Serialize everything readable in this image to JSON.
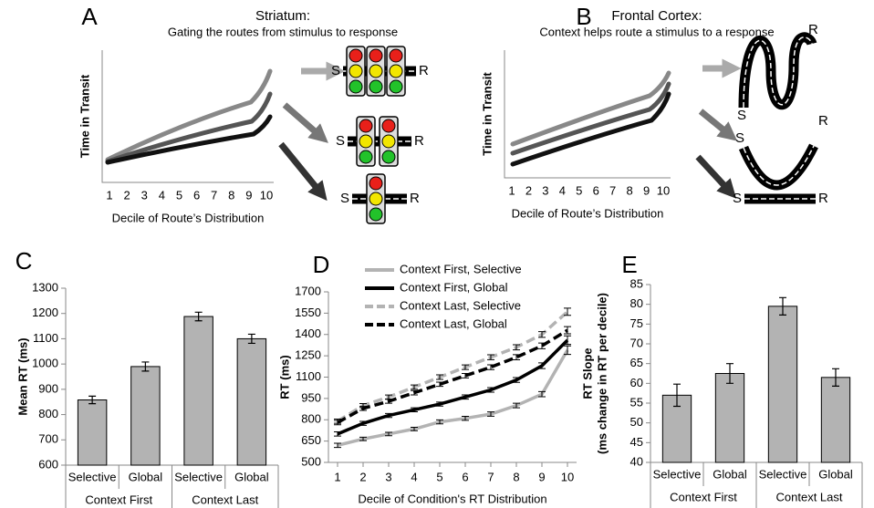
{
  "diagrams": [
    {
      "label": "A",
      "title": "Striatum:",
      "subtitle": "Gating the routes from stimulus to response",
      "ylabel": "Time in Transit",
      "xlabel": "Decile of Route’s Distribution",
      "xticks": [
        1,
        2,
        3,
        4,
        5,
        6,
        7,
        8,
        9,
        10
      ],
      "start": "S",
      "end": "R"
    },
    {
      "label": "B",
      "title": "Frontal Cortex:",
      "subtitle": "Context helps route a stimulus to a response",
      "ylabel": "Time in Transit",
      "xlabel": "Decile of Route’s Distribution",
      "xticks": [
        1,
        2,
        3,
        4,
        5,
        6,
        7,
        8,
        9,
        10
      ],
      "start": "S",
      "end": "R"
    }
  ],
  "chart_data": [
    {
      "type": "bar",
      "label": "C",
      "ylabel": [
        "Mean RT (ms)"
      ],
      "categories": [
        "Selective",
        "Global",
        "Selective",
        "Global"
      ],
      "groups": [
        "Context First",
        "Context Last"
      ],
      "values": [
        858,
        990,
        1188,
        1100
      ],
      "errors": [
        15,
        18,
        17,
        18
      ],
      "color": "#b3b3b3",
      "ylim": [
        600,
        1300
      ],
      "yticks": [
        600,
        700,
        800,
        900,
        1000,
        1100,
        1200,
        1300
      ]
    },
    {
      "type": "line",
      "label": "D",
      "ylabel": "RT (ms)",
      "xlabel": "Decile of Condition's RT Distribution",
      "x": [
        1,
        2,
        3,
        4,
        5,
        6,
        7,
        8,
        9,
        10
      ],
      "xticks": [
        1,
        2,
        3,
        4,
        5,
        6,
        7,
        8,
        9,
        10
      ],
      "ylim": [
        500,
        1700
      ],
      "yticks": [
        500,
        650,
        800,
        950,
        1100,
        1250,
        1400,
        1550,
        1700
      ],
      "legend": "upper left",
      "series": [
        {
          "name": "Context First, Selective",
          "color": "#b3b3b3",
          "dashed": false,
          "values": [
            620,
            665,
            700,
            735,
            785,
            810,
            840,
            900,
            980,
            1290
          ],
          "errors": [
            15,
            12,
            12,
            12,
            14,
            14,
            15,
            16,
            18,
            30
          ]
        },
        {
          "name": "Context First, Global",
          "color": "#000000",
          "dashed": false,
          "values": [
            700,
            775,
            830,
            870,
            910,
            960,
            1010,
            1080,
            1180,
            1360
          ],
          "errors": [
            15,
            14,
            14,
            14,
            14,
            15,
            16,
            17,
            20,
            30
          ]
        },
        {
          "name": "Context Last, Selective",
          "color": "#b3b3b3",
          "dashed": true,
          "values": [
            790,
            900,
            960,
            1030,
            1100,
            1170,
            1240,
            1310,
            1400,
            1560
          ],
          "errors": [
            15,
            14,
            14,
            15,
            16,
            16,
            17,
            18,
            20,
            25
          ]
        },
        {
          "name": "Context Last, Global",
          "color": "#000000",
          "dashed": true,
          "values": [
            780,
            880,
            930,
            990,
            1050,
            1110,
            1170,
            1240,
            1320,
            1430
          ],
          "errors": [
            15,
            14,
            14,
            15,
            15,
            16,
            17,
            18,
            20,
            25
          ]
        }
      ]
    },
    {
      "type": "bar",
      "label": "E",
      "ylabel": [
        "RT Slope",
        "(ms change in RT per decile)"
      ],
      "categories": [
        "Selective",
        "Global",
        "Selective",
        "Global"
      ],
      "groups": [
        "Context First",
        "Context Last"
      ],
      "values": [
        57,
        62.5,
        79.5,
        61.5
      ],
      "errors": [
        2.8,
        2.5,
        2.2,
        2.2
      ],
      "color": "#b3b3b3",
      "ylim": [
        40,
        85
      ],
      "yticks": [
        40,
        45,
        50,
        55,
        60,
        65,
        70,
        75,
        80,
        85
      ]
    }
  ]
}
